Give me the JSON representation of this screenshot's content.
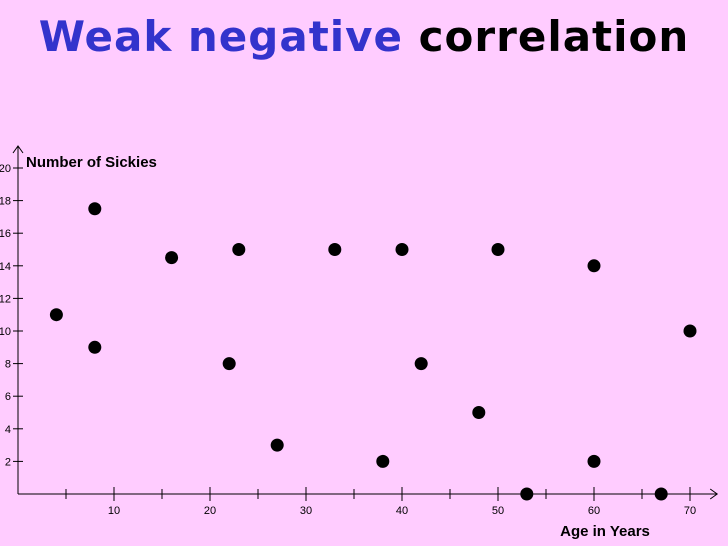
{
  "title": {
    "part1": "Weak negative",
    "part2": "correlation",
    "colors": {
      "part1": "#3333cc",
      "part2": "#000000"
    }
  },
  "background": "#ffccff",
  "chart_data": {
    "type": "scatter",
    "xlabel": "Age in Years",
    "ylabel": "Number of Sickies",
    "xlim": [
      0,
      72
    ],
    "ylim": [
      0,
      20
    ],
    "xticks": [
      10,
      20,
      30,
      40,
      50,
      60,
      70
    ],
    "yticks": [
      2,
      4,
      6,
      8,
      10,
      12,
      14,
      16,
      18,
      20
    ],
    "xtick_labels": [
      "10",
      "20",
      "30",
      "40",
      "50",
      "60",
      "70"
    ],
    "ytick_labels": [
      "2",
      "4",
      "6",
      "8",
      "10",
      "12",
      "14",
      "16",
      "18",
      "20"
    ],
    "grid": false,
    "marker_color": "#000000",
    "points": [
      {
        "x": 4,
        "y": 11
      },
      {
        "x": 8,
        "y": 17.5
      },
      {
        "x": 8,
        "y": 9
      },
      {
        "x": 16,
        "y": 14.5
      },
      {
        "x": 22,
        "y": 8
      },
      {
        "x": 23,
        "y": 15
      },
      {
        "x": 27,
        "y": 3
      },
      {
        "x": 33,
        "y": 15
      },
      {
        "x": 38,
        "y": 2
      },
      {
        "x": 40,
        "y": 15
      },
      {
        "x": 42,
        "y": 8
      },
      {
        "x": 48,
        "y": 5
      },
      {
        "x": 50,
        "y": 15
      },
      {
        "x": 53,
        "y": 0
      },
      {
        "x": 60,
        "y": 14
      },
      {
        "x": 60,
        "y": 2
      },
      {
        "x": 67,
        "y": 0
      },
      {
        "x": 70,
        "y": 10
      }
    ]
  }
}
